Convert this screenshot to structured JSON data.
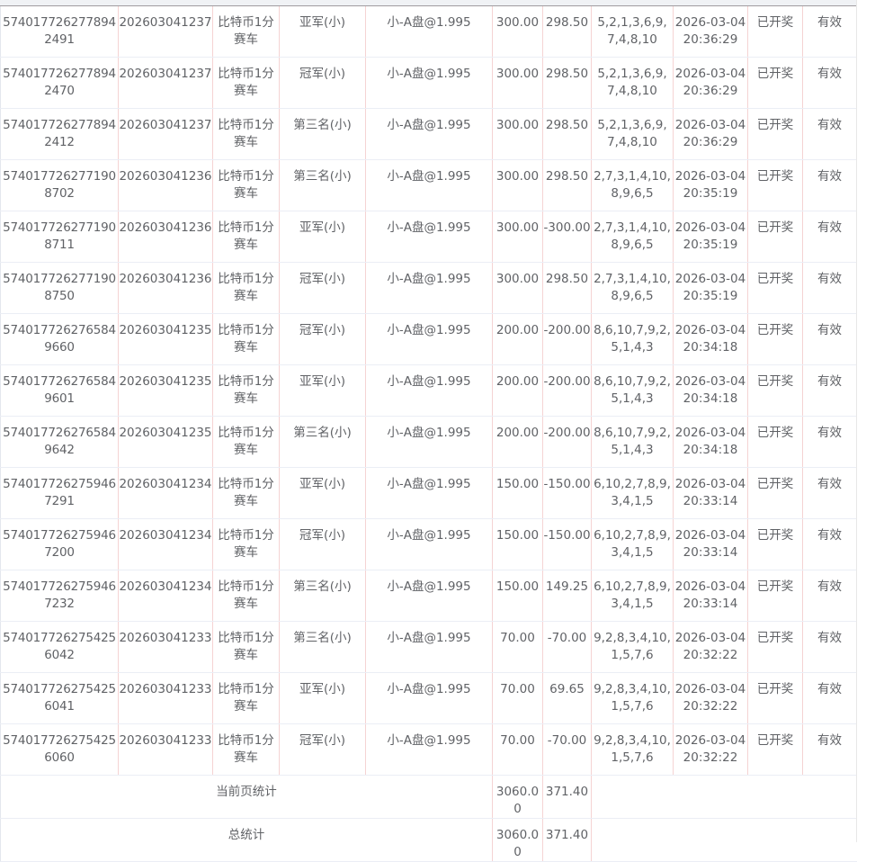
{
  "rows": [
    {
      "id": "5740177262778942491",
      "issue": "202603041237",
      "game": "比特币1分赛车",
      "bet": "亚军(小)",
      "odds": "小-A盘@1.995",
      "amount": "300.00",
      "win": "298.50",
      "result": "5,2,1,3,6,9,7,4,8,10",
      "time": "2026-03-04 20:36:29",
      "status": "已开奖",
      "valid": "有效"
    },
    {
      "id": "5740177262778942470",
      "issue": "202603041237",
      "game": "比特币1分赛车",
      "bet": "冠军(小)",
      "odds": "小-A盘@1.995",
      "amount": "300.00",
      "win": "298.50",
      "result": "5,2,1,3,6,9,7,4,8,10",
      "time": "2026-03-04 20:36:29",
      "status": "已开奖",
      "valid": "有效"
    },
    {
      "id": "5740177262778942412",
      "issue": "202603041237",
      "game": "比特币1分赛车",
      "bet": "第三名(小)",
      "odds": "小-A盘@1.995",
      "amount": "300.00",
      "win": "298.50",
      "result": "5,2,1,3,6,9,7,4,8,10",
      "time": "2026-03-04 20:36:29",
      "status": "已开奖",
      "valid": "有效"
    },
    {
      "id": "5740177262771908702",
      "issue": "202603041236",
      "game": "比特币1分赛车",
      "bet": "第三名(小)",
      "odds": "小-A盘@1.995",
      "amount": "300.00",
      "win": "298.50",
      "result": "2,7,3,1,4,10,8,9,6,5",
      "time": "2026-03-04 20:35:19",
      "status": "已开奖",
      "valid": "有效"
    },
    {
      "id": "5740177262771908711",
      "issue": "202603041236",
      "game": "比特币1分赛车",
      "bet": "亚军(小)",
      "odds": "小-A盘@1.995",
      "amount": "300.00",
      "win": "-300.00",
      "result": "2,7,3,1,4,10,8,9,6,5",
      "time": "2026-03-04 20:35:19",
      "status": "已开奖",
      "valid": "有效"
    },
    {
      "id": "5740177262771908750",
      "issue": "202603041236",
      "game": "比特币1分赛车",
      "bet": "冠军(小)",
      "odds": "小-A盘@1.995",
      "amount": "300.00",
      "win": "298.50",
      "result": "2,7,3,1,4,10,8,9,6,5",
      "time": "2026-03-04 20:35:19",
      "status": "已开奖",
      "valid": "有效"
    },
    {
      "id": "5740177262765849660",
      "issue": "202603041235",
      "game": "比特币1分赛车",
      "bet": "冠军(小)",
      "odds": "小-A盘@1.995",
      "amount": "200.00",
      "win": "-200.00",
      "result": "8,6,10,7,9,2,5,1,4,3",
      "time": "2026-03-04 20:34:18",
      "status": "已开奖",
      "valid": "有效"
    },
    {
      "id": "5740177262765849601",
      "issue": "202603041235",
      "game": "比特币1分赛车",
      "bet": "亚军(小)",
      "odds": "小-A盘@1.995",
      "amount": "200.00",
      "win": "-200.00",
      "result": "8,6,10,7,9,2,5,1,4,3",
      "time": "2026-03-04 20:34:18",
      "status": "已开奖",
      "valid": "有效"
    },
    {
      "id": "5740177262765849642",
      "issue": "202603041235",
      "game": "比特币1分赛车",
      "bet": "第三名(小)",
      "odds": "小-A盘@1.995",
      "amount": "200.00",
      "win": "-200.00",
      "result": "8,6,10,7,9,2,5,1,4,3",
      "time": "2026-03-04 20:34:18",
      "status": "已开奖",
      "valid": "有效"
    },
    {
      "id": "5740177262759467291",
      "issue": "202603041234",
      "game": "比特币1分赛车",
      "bet": "亚军(小)",
      "odds": "小-A盘@1.995",
      "amount": "150.00",
      "win": "-150.00",
      "result": "6,10,2,7,8,9,3,4,1,5",
      "time": "2026-03-04 20:33:14",
      "status": "已开奖",
      "valid": "有效"
    },
    {
      "id": "5740177262759467200",
      "issue": "202603041234",
      "game": "比特币1分赛车",
      "bet": "冠军(小)",
      "odds": "小-A盘@1.995",
      "amount": "150.00",
      "win": "-150.00",
      "result": "6,10,2,7,8,9,3,4,1,5",
      "time": "2026-03-04 20:33:14",
      "status": "已开奖",
      "valid": "有效"
    },
    {
      "id": "5740177262759467232",
      "issue": "202603041234",
      "game": "比特币1分赛车",
      "bet": "第三名(小)",
      "odds": "小-A盘@1.995",
      "amount": "150.00",
      "win": "149.25",
      "result": "6,10,2,7,8,9,3,4,1,5",
      "time": "2026-03-04 20:33:14",
      "status": "已开奖",
      "valid": "有效"
    },
    {
      "id": "5740177262754256042",
      "issue": "202603041233",
      "game": "比特币1分赛车",
      "bet": "第三名(小)",
      "odds": "小-A盘@1.995",
      "amount": "70.00",
      "win": "-70.00",
      "result": "9,2,8,3,4,10,1,5,7,6",
      "time": "2026-03-04 20:32:22",
      "status": "已开奖",
      "valid": "有效"
    },
    {
      "id": "5740177262754256041",
      "issue": "202603041233",
      "game": "比特币1分赛车",
      "bet": "亚军(小)",
      "odds": "小-A盘@1.995",
      "amount": "70.00",
      "win": "69.65",
      "result": "9,2,8,3,4,10,1,5,7,6",
      "time": "2026-03-04 20:32:22",
      "status": "已开奖",
      "valid": "有效"
    },
    {
      "id": "5740177262754256060",
      "issue": "202603041233",
      "game": "比特币1分赛车",
      "bet": "冠军(小)",
      "odds": "小-A盘@1.995",
      "amount": "70.00",
      "win": "-70.00",
      "result": "9,2,8,3,4,10,1,5,7,6",
      "time": "2026-03-04 20:32:22",
      "status": "已开奖",
      "valid": "有效"
    }
  ],
  "summary": {
    "page": {
      "label": "当前页统计",
      "amount": "3060.00",
      "win": "371.40"
    },
    "total": {
      "label": "总统计",
      "amount": "3060.00",
      "win": "371.40"
    }
  }
}
